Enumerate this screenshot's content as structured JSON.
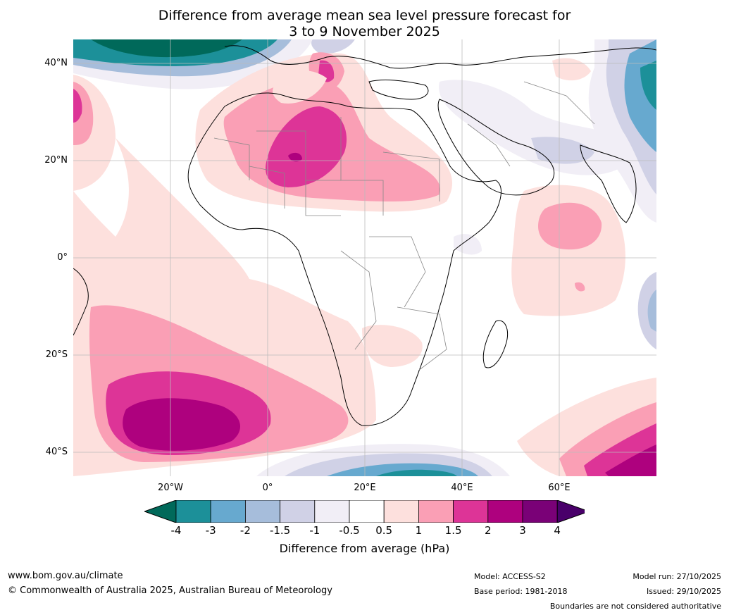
{
  "title": {
    "line1": "Difference from average mean sea level pressure forecast for",
    "line2": "3 to 9 November 2025"
  },
  "axes": {
    "lat_labels": [
      "40°N",
      "20°N",
      "0°",
      "20°S",
      "40°S"
    ],
    "lon_labels": [
      "20°W",
      "0°",
      "20°E",
      "40°E",
      "60°E"
    ]
  },
  "legend": {
    "title": "Difference from average (hPa)",
    "ticks": [
      "-4",
      "-3",
      "-2",
      "-1.5",
      "-1",
      "-0.5",
      "0.5",
      "1",
      "1.5",
      "2",
      "3",
      "4"
    ],
    "colors": [
      "#00695a",
      "#1c9099",
      "#67a9cf",
      "#a6bddb",
      "#d0d1e6",
      "#f1eef6",
      "#ffffff",
      "#fde0dd",
      "#fa9fb5",
      "#dd3497",
      "#ae017e",
      "#7a0177",
      "#49006a"
    ]
  },
  "footer": {
    "url": "www.bom.gov.au/climate",
    "copyright": "© Commonwealth of Australia 2025, Australian Bureau of Meteorology",
    "model": "Model: ACCESS-S2",
    "base_period": "Base period: 1981-2018",
    "model_run": "Model run: 27/10/2025",
    "issued": "Issued: 29/10/2025",
    "boundaries": "Boundaries are not considered authoritative"
  }
}
